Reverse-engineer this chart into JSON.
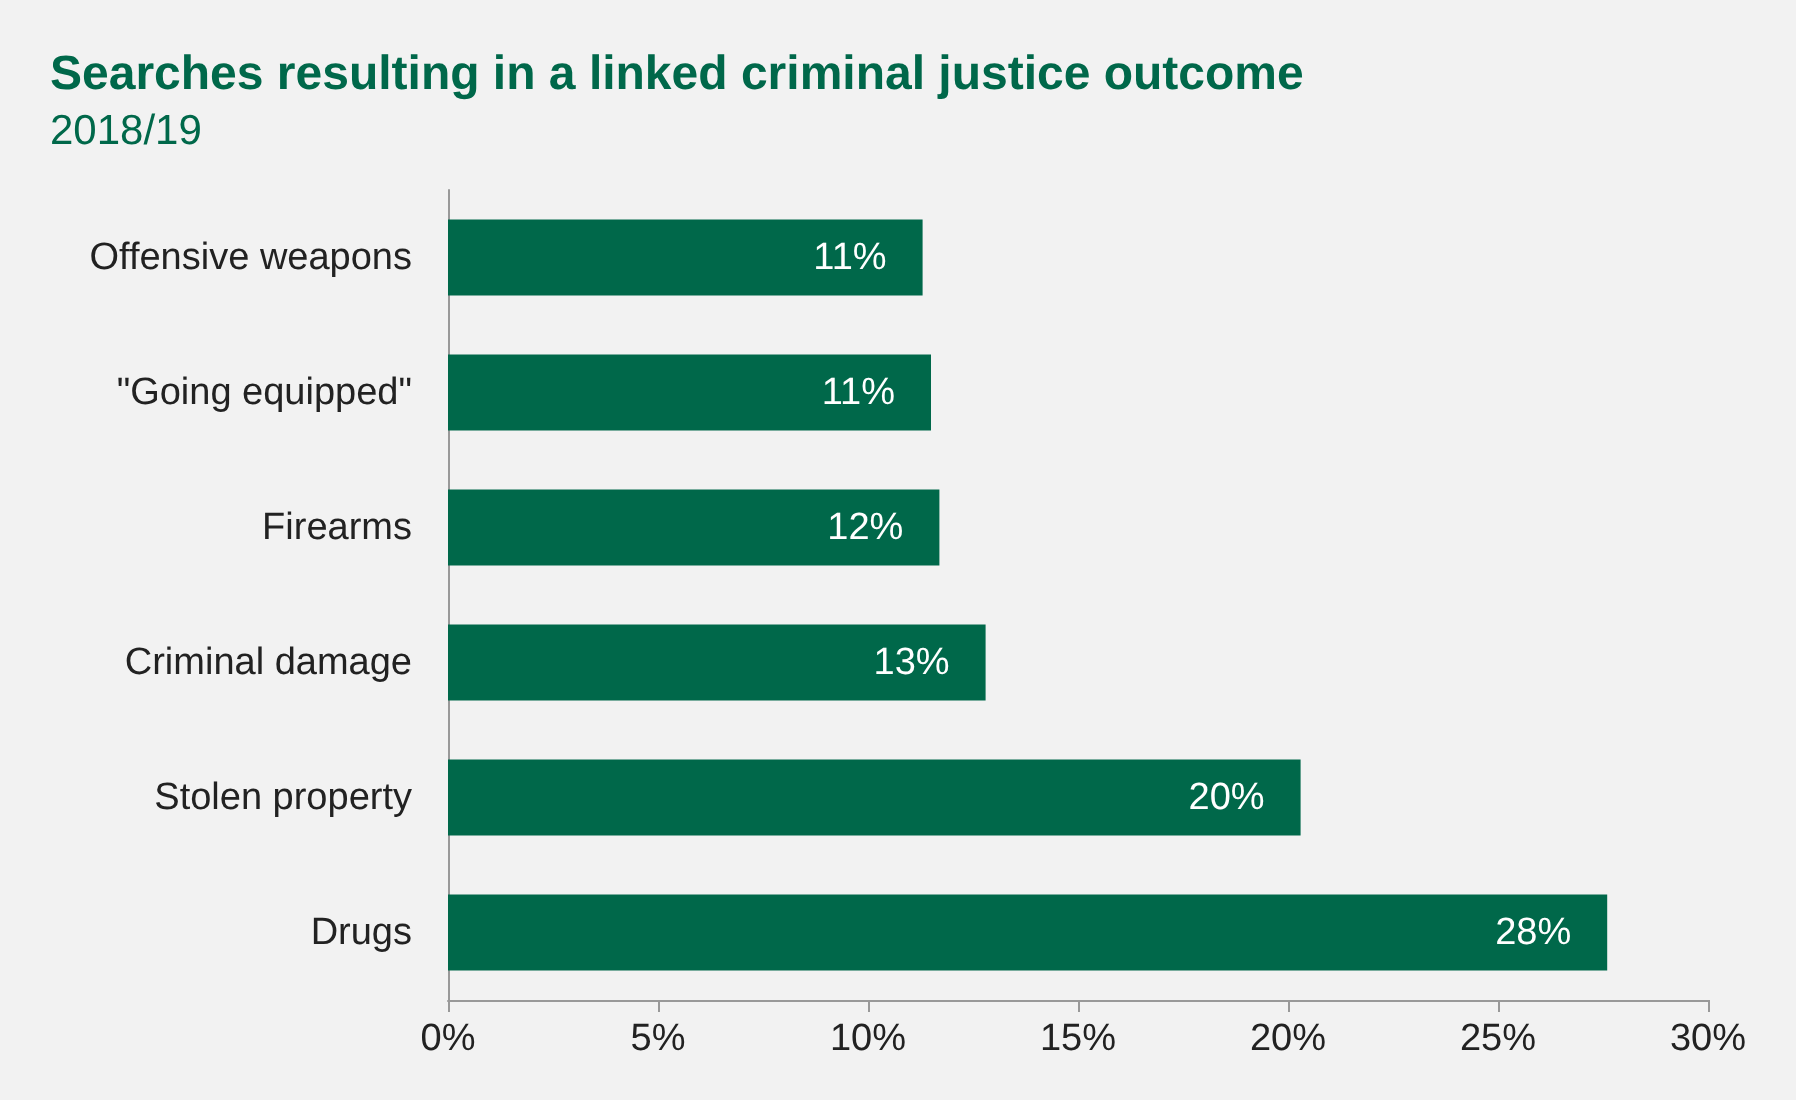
{
  "chart_data": {
    "type": "bar",
    "orientation": "horizontal",
    "title": "Searches resulting in a linked criminal justice outcome",
    "subtitle": "2018/19",
    "categories": [
      "Offensive weapons",
      "\"Going equipped\"",
      "Firearms",
      "Criminal damage",
      "Stolen property",
      "Drugs"
    ],
    "values": [
      11.3,
      11.5,
      11.7,
      12.8,
      20.3,
      27.6
    ],
    "value_labels": [
      "11%",
      "11%",
      "12%",
      "13%",
      "20%",
      "28%"
    ],
    "color": "#00684a",
    "xlim": [
      0,
      30
    ],
    "xticks": [
      {
        "value": 0,
        "label": "0%"
      },
      {
        "value": 5,
        "label": "5%"
      },
      {
        "value": 10,
        "label": "10%"
      },
      {
        "value": 15,
        "label": "15%"
      },
      {
        "value": 20,
        "label": "20%"
      },
      {
        "value": 25,
        "label": "25%"
      },
      {
        "value": 30,
        "label": "30%"
      }
    ],
    "grid": false
  }
}
